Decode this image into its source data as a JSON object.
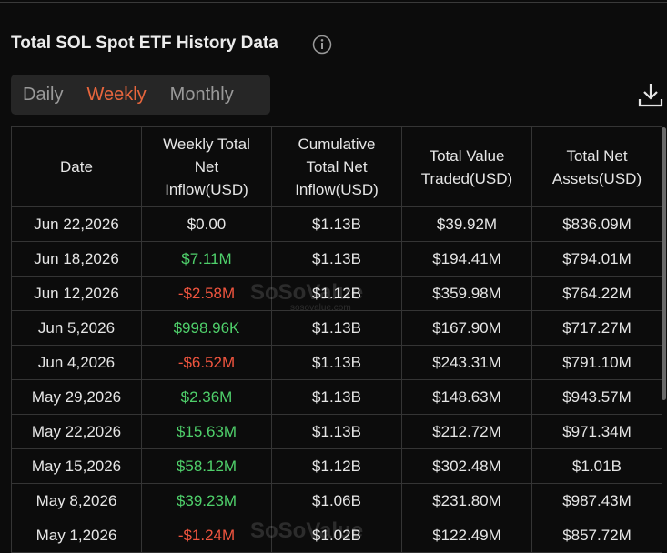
{
  "header": {
    "title": "Total SOL Spot ETF History Data"
  },
  "tabs": {
    "items": [
      "Daily",
      "Weekly",
      "Monthly"
    ],
    "active": 1
  },
  "table": {
    "columns": [
      "Date",
      "Weekly Total Net Inflow(USD)",
      "Cumulative Total Net Inflow(USD)",
      "Total Value Traded(USD)",
      "Total Net Assets(USD)"
    ],
    "rows": [
      [
        "Jun 22,2026",
        "$0.00",
        "$1.13B",
        "$39.92M",
        "$836.09M"
      ],
      [
        "Jun 18,2026",
        "$7.11M",
        "$1.13B",
        "$194.41M",
        "$794.01M"
      ],
      [
        "Jun 12,2026",
        "-$2.58M",
        "$1.12B",
        "$359.98M",
        "$764.22M"
      ],
      [
        "Jun 5,2026",
        "$998.96K",
        "$1.13B",
        "$167.90M",
        "$717.27M"
      ],
      [
        "Jun 4,2026",
        "-$6.52M",
        "$1.13B",
        "$243.31M",
        "$791.10M"
      ],
      [
        "May 29,2026",
        "$2.36M",
        "$1.13B",
        "$148.63M",
        "$943.57M"
      ],
      [
        "May 22,2026",
        "$15.63M",
        "$1.13B",
        "$212.72M",
        "$971.34M"
      ],
      [
        "May 15,2026",
        "$58.12M",
        "$1.12B",
        "$302.48M",
        "$1.01B"
      ],
      [
        "May 8,2026",
        "$39.23M",
        "$1.06B",
        "$231.80M",
        "$987.43M"
      ],
      [
        "May 1,2026",
        "-$1.24M",
        "$1.02B",
        "$122.49M",
        "$857.72M"
      ]
    ]
  },
  "watermark": {
    "brand": "SoSoValue",
    "url": "sosovalue.com"
  }
}
